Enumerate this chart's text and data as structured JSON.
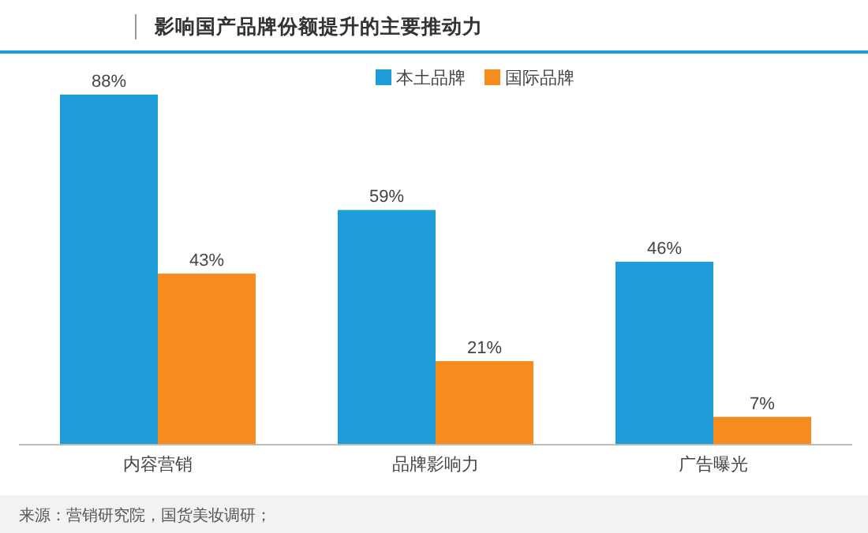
{
  "chart_data": {
    "type": "bar",
    "title": "影响国产品牌份额提升的主要推动力",
    "categories": [
      "内容营销",
      "品牌影响力",
      "广告曝光"
    ],
    "series": [
      {
        "name": "本土品牌",
        "color": "#1f9dd9",
        "values": [
          88,
          59,
          46
        ],
        "value_labels": [
          "88%",
          "59%",
          "46%"
        ]
      },
      {
        "name": "国际品牌",
        "color": "#f68b1f",
        "values": [
          43,
          21,
          7
        ],
        "value_labels": [
          "43%",
          "21%",
          "7%"
        ]
      }
    ],
    "legend": "top",
    "annotations": [
      "来源：营销研究院，国货美妆调研；"
    ]
  }
}
